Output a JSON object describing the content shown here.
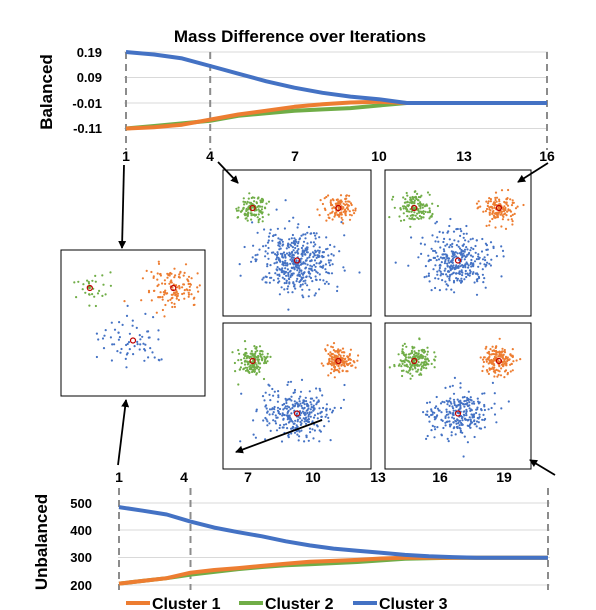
{
  "colors": {
    "cluster_1": "#ED7D31",
    "cluster_2": "#70AD47",
    "cluster_3": "#4472C4",
    "grid": "#d9d9d9",
    "guide": "#8c8c8c",
    "centroid": "#c00000"
  },
  "chart_data": [
    {
      "type": "line",
      "title": "Mass Difference over Iterations",
      "ylabel": "Balanced",
      "x": [
        1,
        2,
        3,
        4,
        5,
        6,
        7,
        8,
        9,
        10,
        11,
        12,
        13,
        14,
        15,
        16
      ],
      "x_ticks": [
        "1",
        "4",
        "7",
        "10",
        "13",
        "16"
      ],
      "y_ticks": [
        "0.19",
        "0.09",
        "-0.01",
        "-0.11"
      ],
      "ylim": [
        -0.11,
        0.19
      ],
      "grid": true,
      "series": [
        {
          "name": "Cluster 1",
          "color": "#ED7D31",
          "values": [
            -0.11,
            -0.105,
            -0.095,
            -0.075,
            -0.055,
            -0.04,
            -0.025,
            -0.015,
            -0.008,
            -0.005,
            -0.01,
            -0.01,
            -0.01,
            -0.01,
            -0.01,
            -0.01
          ]
        },
        {
          "name": "Cluster 2",
          "color": "#70AD47",
          "values": [
            -0.11,
            -0.1,
            -0.09,
            -0.08,
            -0.06,
            -0.05,
            -0.04,
            -0.035,
            -0.03,
            -0.02,
            -0.01,
            -0.01,
            -0.01,
            -0.01,
            -0.01,
            -0.01
          ]
        },
        {
          "name": "Cluster 3",
          "color": "#4472C4",
          "values": [
            0.19,
            0.18,
            0.165,
            0.135,
            0.105,
            0.075,
            0.05,
            0.03,
            0.015,
            0.005,
            -0.01,
            -0.01,
            -0.01,
            -0.01,
            -0.01,
            -0.01
          ]
        }
      ]
    },
    {
      "type": "line",
      "ylabel": "Unbalanced",
      "x": [
        1,
        2,
        3,
        4,
        5,
        6,
        7,
        8,
        9,
        10,
        11,
        12,
        13,
        14,
        15,
        16,
        17,
        18,
        19
      ],
      "x_ticks": [
        "1",
        "4",
        "7",
        "10",
        "13",
        "16",
        "19"
      ],
      "y_ticks": [
        "500",
        "400",
        "300",
        "200"
      ],
      "ylim": [
        200,
        500
      ],
      "grid": true,
      "series": [
        {
          "name": "Cluster 1",
          "color": "#ED7D31",
          "values": [
            205,
            215,
            225,
            245,
            255,
            262,
            270,
            278,
            285,
            288,
            292,
            297,
            300,
            300,
            300,
            300,
            300,
            300,
            300
          ]
        },
        {
          "name": "Cluster 2",
          "color": "#70AD47",
          "values": [
            205,
            215,
            225,
            238,
            248,
            258,
            266,
            272,
            276,
            280,
            284,
            290,
            296,
            298,
            300,
            300,
            300,
            300,
            300
          ]
        },
        {
          "name": "Cluster 3",
          "color": "#4472C4",
          "values": [
            485,
            472,
            458,
            432,
            410,
            393,
            378,
            360,
            345,
            333,
            325,
            318,
            310,
            305,
            302,
            300,
            300,
            300,
            300
          ]
        }
      ]
    }
  ],
  "legend": {
    "placement": "bottom",
    "entries": [
      "Cluster 1",
      "Cluster 2",
      "Cluster 3"
    ]
  },
  "scatter_panels": [
    {
      "name": "unbalanced-iter-1",
      "c1": [
        128,
        38,
        24,
        19
      ],
      "c2": [
        32,
        40,
        13,
        13
      ],
      "c3": [
        65,
        75,
        30,
        22
      ],
      "cent": [
        [
          78,
          36
        ],
        [
          28,
          36
        ],
        [
          67,
          75
        ]
      ]
    },
    {
      "name": "balanced-iter-4",
      "c1": [
        120,
        35,
        12,
        11
      ],
      "c2": [
        120,
        35,
        12,
        11
      ],
      "c3": [
        450,
        95,
        33,
        25
      ],
      "cent": [
        [
          112,
          33
        ],
        [
          20,
          42
        ],
        [
          70,
          95
        ]
      ]
    },
    {
      "name": "balanced-iter-16",
      "c1": [
        140,
        35,
        14,
        12
      ],
      "c2": [
        140,
        35,
        14,
        12
      ],
      "c3": [
        320,
        95,
        28,
        22
      ],
      "cent": [
        [
          112,
          40
        ],
        [
          32,
          45
        ],
        [
          70,
          102
        ]
      ]
    },
    {
      "name": "unbalanced-iter-7",
      "c1": [
        150,
        35,
        12,
        11
      ],
      "c2": [
        150,
        35,
        12,
        11
      ],
      "c3": [
        300,
        95,
        28,
        22
      ],
      "cent": [
        [
          112,
          33
        ],
        [
          25,
          40
        ],
        [
          72,
          95
        ]
      ]
    },
    {
      "name": "unbalanced-iter-19",
      "c1": [
        170,
        35,
        14,
        12
      ],
      "c2": [
        170,
        35,
        14,
        12
      ],
      "c3": [
        260,
        95,
        26,
        20
      ],
      "cent": [
        [
          112,
          47
        ],
        [
          32,
          47
        ],
        [
          75,
          100
        ]
      ]
    }
  ]
}
